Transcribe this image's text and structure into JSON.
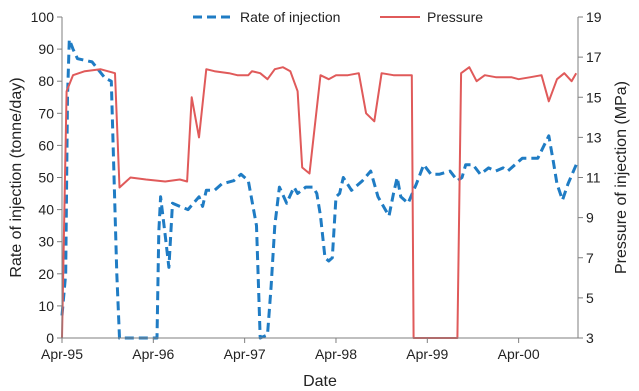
{
  "chart_data": {
    "type": "line",
    "xlabel": "Date",
    "ylabel_left": "Rate of injection  (tonne/day)",
    "ylabel_right": "Pressure of injection (MPa)",
    "x_ticks": [
      "Apr-95",
      "Apr-96",
      "Apr-97",
      "Apr-98",
      "Apr-99",
      "Apr-00"
    ],
    "xlim": [
      1995.25,
      2000.9
    ],
    "ylim_left": [
      0,
      100
    ],
    "ylim_right": [
      3,
      19
    ],
    "y_ticks_left": [
      0,
      10,
      20,
      30,
      40,
      50,
      60,
      70,
      80,
      90,
      100
    ],
    "y_ticks_right": [
      3,
      5,
      7,
      9,
      11,
      13,
      15,
      17,
      19
    ],
    "legend": {
      "placement": "top-center"
    },
    "grid": false,
    "series": [
      {
        "name": "Rate of injection",
        "axis": "left",
        "color": "#1f7cc4",
        "style": "dashed",
        "points": [
          [
            1995.25,
            7
          ],
          [
            1995.29,
            20
          ],
          [
            1995.31,
            75
          ],
          [
            1995.33,
            93
          ],
          [
            1995.37,
            90
          ],
          [
            1995.42,
            87
          ],
          [
            1995.58,
            86
          ],
          [
            1995.72,
            81
          ],
          [
            1995.79,
            80
          ],
          [
            1995.85,
            20
          ],
          [
            1995.88,
            0
          ],
          [
            1996.0,
            0
          ],
          [
            1996.17,
            0
          ],
          [
            1996.29,
            0
          ],
          [
            1996.31,
            33
          ],
          [
            1996.33,
            44
          ],
          [
            1996.38,
            32
          ],
          [
            1996.42,
            22
          ],
          [
            1996.46,
            42
          ],
          [
            1996.54,
            41
          ],
          [
            1996.63,
            40
          ],
          [
            1996.75,
            44
          ],
          [
            1996.79,
            41
          ],
          [
            1996.83,
            46
          ],
          [
            1996.92,
            46
          ],
          [
            1997.0,
            48
          ],
          [
            1997.13,
            49
          ],
          [
            1997.21,
            51
          ],
          [
            1997.29,
            49
          ],
          [
            1997.38,
            35
          ],
          [
            1997.42,
            0
          ],
          [
            1997.5,
            1
          ],
          [
            1997.54,
            16
          ],
          [
            1997.58,
            35
          ],
          [
            1997.63,
            47
          ],
          [
            1997.71,
            42
          ],
          [
            1997.79,
            47
          ],
          [
            1997.83,
            45
          ],
          [
            1997.92,
            47
          ],
          [
            1998.0,
            47
          ],
          [
            1998.04,
            45
          ],
          [
            1998.08,
            38
          ],
          [
            1998.13,
            25
          ],
          [
            1998.17,
            24
          ],
          [
            1998.21,
            25
          ],
          [
            1998.25,
            44
          ],
          [
            1998.29,
            45
          ],
          [
            1998.33,
            50
          ],
          [
            1998.42,
            46
          ],
          [
            1998.54,
            49
          ],
          [
            1998.63,
            52
          ],
          [
            1998.71,
            44
          ],
          [
            1998.79,
            40
          ],
          [
            1998.83,
            38
          ],
          [
            1998.88,
            45
          ],
          [
            1998.92,
            50
          ],
          [
            1998.96,
            44
          ],
          [
            1999.04,
            42
          ],
          [
            1999.13,
            48
          ],
          [
            1999.21,
            54
          ],
          [
            1999.29,
            51
          ],
          [
            1999.38,
            51
          ],
          [
            1999.5,
            52
          ],
          [
            1999.58,
            49
          ],
          [
            1999.63,
            50
          ],
          [
            1999.67,
            54
          ],
          [
            1999.75,
            54
          ],
          [
            1999.83,
            51
          ],
          [
            1999.92,
            53
          ],
          [
            2000.0,
            52
          ],
          [
            2000.08,
            53
          ],
          [
            2000.13,
            52
          ],
          [
            2000.21,
            54
          ],
          [
            2000.29,
            56
          ],
          [
            2000.38,
            56
          ],
          [
            2000.46,
            56
          ],
          [
            2000.58,
            63
          ],
          [
            2000.63,
            55
          ],
          [
            2000.67,
            48
          ],
          [
            2000.73,
            43
          ],
          [
            2000.79,
            48
          ],
          [
            2000.88,
            54
          ]
        ]
      },
      {
        "name": "Pressure",
        "axis": "right",
        "color": "#e05a5a",
        "style": "solid",
        "points": [
          [
            1995.25,
            3
          ],
          [
            1995.3,
            15.3
          ],
          [
            1995.37,
            16.1
          ],
          [
            1995.5,
            16.3
          ],
          [
            1995.67,
            16.4
          ],
          [
            1995.75,
            16.3
          ],
          [
            1995.83,
            16.2
          ],
          [
            1995.88,
            10.5
          ],
          [
            1996.0,
            11.0
          ],
          [
            1996.17,
            10.9
          ],
          [
            1996.38,
            10.8
          ],
          [
            1996.54,
            10.9
          ],
          [
            1996.62,
            10.8
          ],
          [
            1996.67,
            15.0
          ],
          [
            1996.75,
            13.0
          ],
          [
            1996.83,
            16.4
          ],
          [
            1996.92,
            16.3
          ],
          [
            1997.08,
            16.2
          ],
          [
            1997.17,
            16.1
          ],
          [
            1997.29,
            16.1
          ],
          [
            1997.33,
            16.3
          ],
          [
            1997.42,
            16.2
          ],
          [
            1997.5,
            15.9
          ],
          [
            1997.58,
            16.4
          ],
          [
            1997.67,
            16.5
          ],
          [
            1997.75,
            16.3
          ],
          [
            1997.83,
            15.3
          ],
          [
            1997.88,
            11.5
          ],
          [
            1997.96,
            11.2
          ],
          [
            1998.08,
            16.1
          ],
          [
            1998.17,
            15.9
          ],
          [
            1998.25,
            16.1
          ],
          [
            1998.38,
            16.1
          ],
          [
            1998.5,
            16.2
          ],
          [
            1998.58,
            14.2
          ],
          [
            1998.67,
            13.8
          ],
          [
            1998.75,
            16.2
          ],
          [
            1998.88,
            16.1
          ],
          [
            1999.0,
            16.1
          ],
          [
            1999.08,
            16.1
          ],
          [
            1999.1,
            3
          ],
          [
            1999.58,
            3
          ],
          [
            1999.62,
            16.2
          ],
          [
            1999.71,
            16.5
          ],
          [
            1999.79,
            15.8
          ],
          [
            1999.88,
            16.1
          ],
          [
            2000.0,
            16.0
          ],
          [
            2000.17,
            16.0
          ],
          [
            2000.25,
            15.9
          ],
          [
            2000.38,
            16.0
          ],
          [
            2000.5,
            16.1
          ],
          [
            2000.58,
            14.8
          ],
          [
            2000.67,
            15.9
          ],
          [
            2000.75,
            16.2
          ],
          [
            2000.83,
            15.8
          ],
          [
            2000.88,
            16.2
          ]
        ]
      }
    ]
  }
}
